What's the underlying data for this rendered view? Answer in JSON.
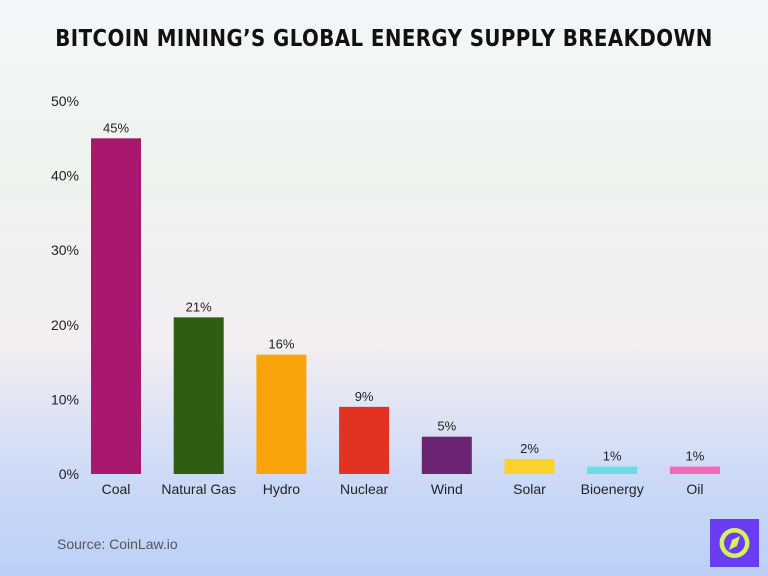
{
  "title": "Bitcoin Mining’s Global Energy Supply Breakdown",
  "source": "Source: CoinLaw.io",
  "logo": {
    "icon": "compass-icon",
    "bg_color": "#6a3df0",
    "fg_color": "#d4f25a"
  },
  "chart_data": {
    "type": "bar",
    "title": "Bitcoin Mining’s Global Energy Supply Breakdown",
    "categories": [
      "Coal",
      "Natural Gas",
      "Hydro",
      "Nuclear",
      "Wind",
      "Solar",
      "Bioenergy",
      "Oil"
    ],
    "values": [
      45,
      21,
      16,
      9,
      5,
      2,
      1,
      1
    ],
    "data_labels": [
      "45%",
      "21%",
      "16%",
      "9%",
      "5%",
      "2%",
      "1%",
      "1%"
    ],
    "colors": [
      "#a8186f",
      "#2e5e12",
      "#fba30a",
      "#e23322",
      "#6b2472",
      "#fdd22c",
      "#6adce6",
      "#f06ab8"
    ],
    "y_ticks": [
      "0%",
      "10%",
      "20%",
      "30%",
      "40%",
      "50%"
    ],
    "ylim": [
      0,
      50
    ],
    "xlabel": "",
    "ylabel": "",
    "grid": false,
    "legend": "none"
  }
}
